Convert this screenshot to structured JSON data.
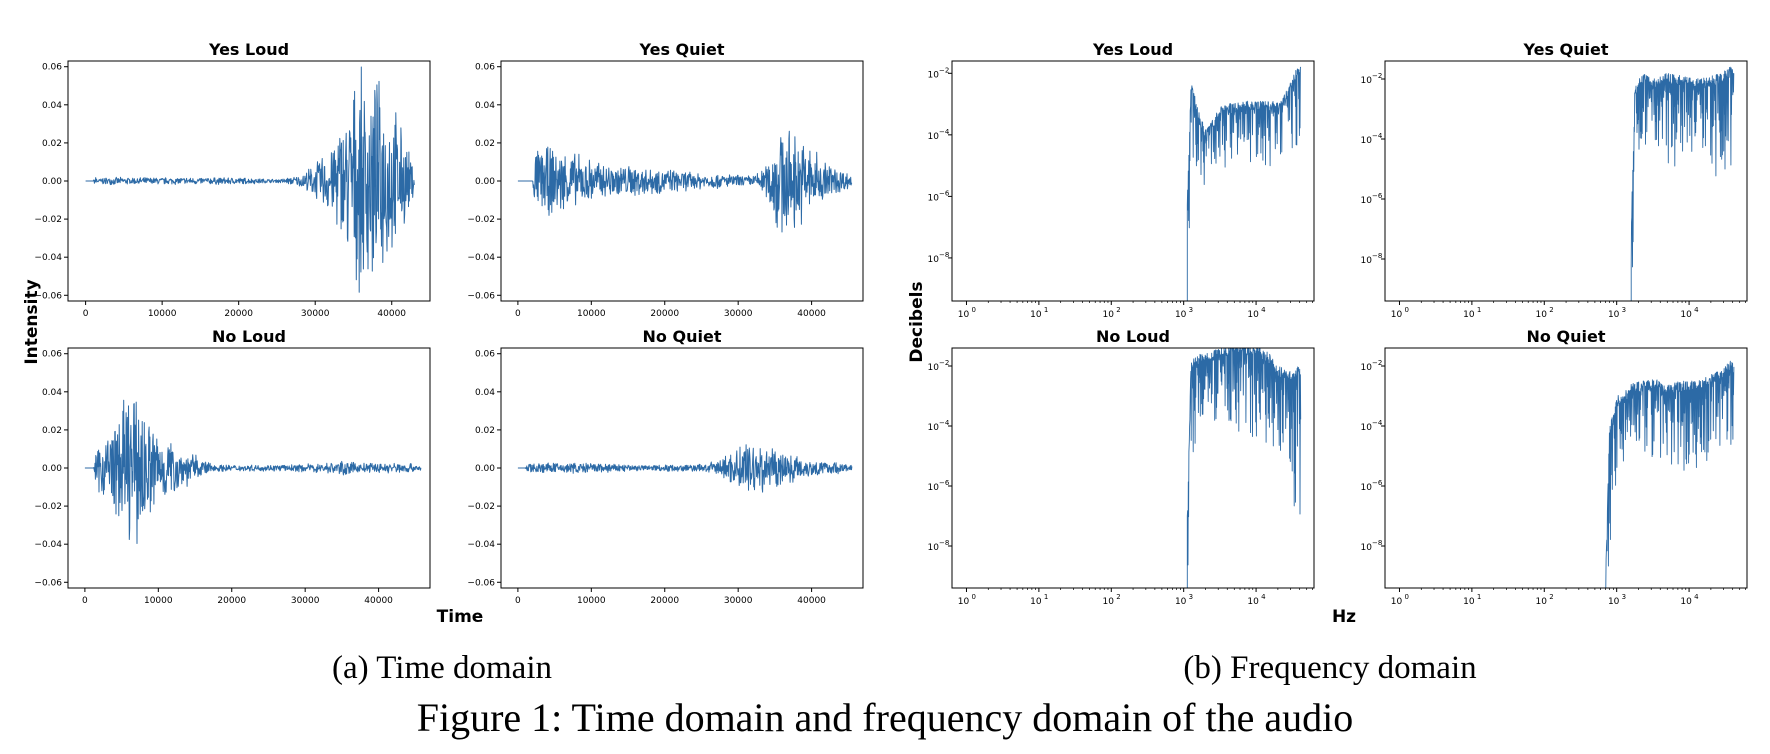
{
  "colors": {
    "series": "#2c6aa6",
    "axes": "#000000"
  },
  "figure": {
    "caption": "Figure 1: Time domain and frequency domain of the audio",
    "subcaption_a": "(a)  Time domain",
    "subcaption_b": "(b)  Frequency domain"
  },
  "time_panel": {
    "xlabel": "Time",
    "ylabel": "Intensity",
    "xticks": [
      "0",
      "10000",
      "20000",
      "30000",
      "40000"
    ],
    "yticks": [
      "0.06",
      "0.04",
      "0.02",
      "0.00",
      "−0.02",
      "−0.04",
      "−0.06"
    ]
  },
  "freq_panel": {
    "xlabel": "Hz",
    "ylabel": "Decibels",
    "xticks": [
      "10",
      "10",
      "10",
      "10",
      "10"
    ],
    "xtick_exponents": [
      "0",
      "1",
      "2",
      "3",
      "4"
    ],
    "yticks_a": [
      "10",
      "10",
      "10",
      "10"
    ],
    "ytick_exponents_a": [
      "−2",
      "−4",
      "−6",
      "−8"
    ]
  },
  "chart_data": [
    {
      "type": "line",
      "title": "Yes Loud",
      "domain": "time",
      "xlim": [
        -2300,
        45000
      ],
      "ylim": [
        -0.063,
        0.063
      ],
      "envelope": {
        "x": [
          0,
          1000,
          1300,
          1700,
          2200,
          5000,
          10000,
          15000,
          20000,
          25000,
          28000,
          30000,
          32000,
          34000,
          35500,
          37000,
          38500,
          40000,
          41000,
          42000,
          43000
        ],
        "amp": [
          0,
          0,
          0.004,
          0.001,
          0.002,
          0.002,
          0.002,
          0.002,
          0.002,
          0.001,
          0.003,
          0.01,
          0.02,
          0.04,
          0.06,
          0.06,
          0.055,
          0.045,
          0.035,
          0.02,
          0.008
        ]
      }
    },
    {
      "type": "line",
      "title": "Yes Quiet",
      "domain": "time",
      "xlim": [
        -2300,
        47000
      ],
      "ylim": [
        -0.063,
        0.063
      ],
      "envelope": {
        "x": [
          0,
          2000,
          2300,
          3500,
          6000,
          9000,
          12000,
          16000,
          20000,
          24000,
          28000,
          32000,
          34000,
          35500,
          36500,
          38500,
          40500,
          42500,
          44500,
          45500
        ],
        "amp": [
          0,
          0,
          0.018,
          0.02,
          0.018,
          0.014,
          0.01,
          0.009,
          0.007,
          0.005,
          0.004,
          0.003,
          0.01,
          0.035,
          0.03,
          0.025,
          0.018,
          0.01,
          0.006,
          0.003
        ]
      }
    },
    {
      "type": "line",
      "title": "No Loud",
      "domain": "time",
      "xlim": [
        -2300,
        47000
      ],
      "ylim": [
        -0.063,
        0.063
      ],
      "envelope": {
        "x": [
          0,
          1200,
          1500,
          2500,
          4500,
          6000,
          7500,
          9500,
          12000,
          14000,
          16000,
          18000,
          22000,
          28000,
          33000,
          35000,
          37000,
          40000,
          44000,
          45800
        ],
        "amp": [
          0,
          0,
          0.01,
          0.02,
          0.03,
          0.045,
          0.04,
          0.025,
          0.015,
          0.01,
          0.005,
          0.002,
          0.0018,
          0.0018,
          0.003,
          0.004,
          0.003,
          0.003,
          0.003,
          0.002
        ]
      }
    },
    {
      "type": "line",
      "title": "No Quiet",
      "domain": "time",
      "xlim": [
        -2300,
        47000
      ],
      "ylim": [
        -0.063,
        0.063
      ],
      "envelope": {
        "x": [
          0,
          1000,
          1300,
          5000,
          10000,
          15000,
          20000,
          24000,
          26000,
          28000,
          30000,
          32000,
          34000,
          36000,
          38000,
          40000,
          42000,
          44000,
          45500
        ],
        "amp": [
          0,
          0,
          0.003,
          0.003,
          0.003,
          0.002,
          0.002,
          0.002,
          0.003,
          0.006,
          0.012,
          0.018,
          0.014,
          0.01,
          0.007,
          0.005,
          0.004,
          0.003,
          0.002
        ]
      }
    },
    {
      "type": "line",
      "title": "Yes Loud",
      "domain": "frequency",
      "xscale": "log",
      "yscale": "log",
      "xlim_log10": [
        -0.2,
        4.8
      ],
      "ylim_log10": [
        -9.4,
        -1.6
      ],
      "profile": {
        "log10_hz": [
          3.05,
          3.1,
          3.15,
          3.2,
          3.3,
          3.4,
          3.5,
          3.6,
          3.8,
          4.0,
          4.2,
          4.35,
          4.45,
          4.55,
          4.62
        ],
        "top_log10": [
          -6,
          -2.3,
          -2.7,
          -3.2,
          -3.8,
          -3.5,
          -3.1,
          -3.0,
          -2.9,
          -2.9,
          -2.9,
          -2.9,
          -2.4,
          -1.9,
          -1.7
        ],
        "bottom_log10": [
          -9.4,
          -5.8,
          -5.0,
          -5.3,
          -5.7,
          -5.0,
          -5.0,
          -5.1,
          -5.2,
          -5.2,
          -5.0,
          -4.6,
          -4.6,
          -4.5,
          -4.4
        ]
      }
    },
    {
      "type": "line",
      "title": "Yes Quiet",
      "domain": "frequency",
      "xscale": "log",
      "yscale": "log",
      "xlim_log10": [
        -0.2,
        4.8
      ],
      "ylim_log10": [
        -9.4,
        -1.4
      ],
      "profile": {
        "log10_hz": [
          3.2,
          3.25,
          3.3,
          3.35,
          3.5,
          3.7,
          3.9,
          4.1,
          4.3,
          4.45,
          4.55,
          4.62
        ],
        "top_log10": [
          -7,
          -2.4,
          -1.9,
          -1.8,
          -2.0,
          -1.8,
          -1.9,
          -2.0,
          -1.9,
          -1.8,
          -1.6,
          -1.6
        ],
        "bottom_log10": [
          -9.4,
          -6.8,
          -5.0,
          -4.4,
          -4.6,
          -5.2,
          -4.8,
          -4.8,
          -5.3,
          -5.3,
          -5.1,
          -4.6
        ]
      }
    },
    {
      "type": "line",
      "title": "No Loud",
      "domain": "frequency",
      "xscale": "log",
      "yscale": "log",
      "xlim_log10": [
        -0.2,
        4.8
      ],
      "ylim_log10": [
        -9.4,
        -1.4
      ],
      "profile": {
        "log10_hz": [
          3.05,
          3.1,
          3.15,
          3.2,
          3.4,
          3.6,
          3.8,
          4.0,
          4.2,
          4.3,
          4.4,
          4.5,
          4.58,
          4.62
        ],
        "top_log10": [
          -7,
          -1.9,
          -1.7,
          -1.6,
          -1.5,
          -1.3,
          -1.25,
          -1.3,
          -1.6,
          -2.0,
          -2.1,
          -2.1,
          -2.0,
          -2.1
        ],
        "bottom_log10": [
          -9.4,
          -6.8,
          -4.8,
          -3.9,
          -3.9,
          -4.2,
          -4.3,
          -4.4,
          -4.8,
          -4.9,
          -5.3,
          -6.0,
          -8.3,
          -7.0
        ]
      }
    },
    {
      "type": "line",
      "title": "No Quiet",
      "domain": "frequency",
      "xscale": "log",
      "yscale": "log",
      "xlim_log10": [
        -0.2,
        4.8
      ],
      "ylim_log10": [
        -9.4,
        -1.4
      ],
      "profile": {
        "log10_hz": [
          2.85,
          2.9,
          2.95,
          3.0,
          3.1,
          3.2,
          3.35,
          3.5,
          3.7,
          3.9,
          4.1,
          4.3,
          4.45,
          4.55,
          4.62
        ],
        "top_log10": [
          -8.8,
          -4.0,
          -3.6,
          -3.0,
          -2.9,
          -2.6,
          -2.5,
          -2.4,
          -2.6,
          -2.5,
          -2.5,
          -2.3,
          -2.1,
          -1.8,
          -1.9
        ],
        "bottom_log10": [
          -9.4,
          -8.5,
          -7.2,
          -6.0,
          -5.5,
          -5.0,
          -4.8,
          -5.1,
          -5.6,
          -5.7,
          -5.4,
          -5.1,
          -4.9,
          -4.5,
          -4.9
        ]
      }
    }
  ]
}
